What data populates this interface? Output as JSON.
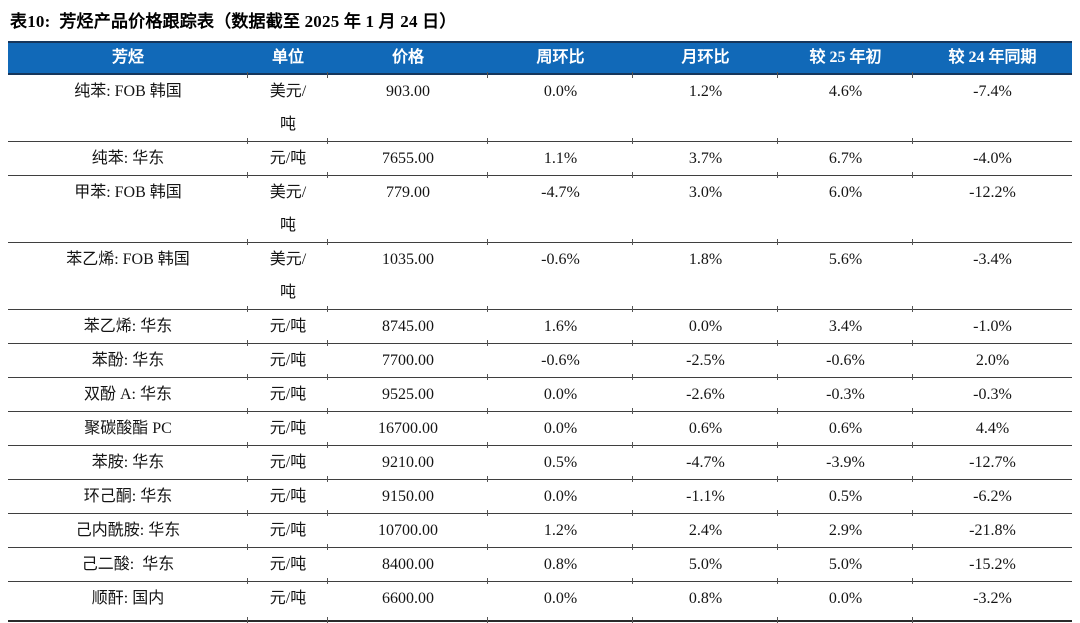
{
  "title": "表10:  芳烃产品价格跟踪表（数据截至 2025 年 1 月 24 日）",
  "colors": {
    "header_bg": "#1169B8",
    "header_text": "#FFFFFF",
    "header_rule": "#16365C",
    "row_rule": "#3F3F3F",
    "body_text": "#141414"
  },
  "table": {
    "columns": [
      {
        "label": "芳烃"
      },
      {
        "label": "单位"
      },
      {
        "label": "价格"
      },
      {
        "label": "周环比"
      },
      {
        "label": "月环比"
      },
      {
        "label": "较 25 年初"
      },
      {
        "label": "较 24 年同期"
      }
    ],
    "rows": [
      {
        "cells": [
          "纯苯: FOB 韩国",
          "美元/\n吨",
          "903.00",
          "0.0%",
          "1.2%",
          "4.6%",
          "-7.4%"
        ]
      },
      {
        "cells": [
          "纯苯: 华东",
          "元/吨",
          "7655.00",
          "1.1%",
          "3.7%",
          "6.7%",
          "-4.0%"
        ]
      },
      {
        "cells": [
          "甲苯: FOB 韩国",
          "美元/\n吨",
          "779.00",
          "-4.7%",
          "3.0%",
          "6.0%",
          "-12.2%"
        ]
      },
      {
        "cells": [
          "苯乙烯: FOB 韩国",
          "美元/\n吨",
          "1035.00",
          "-0.6%",
          "1.8%",
          "5.6%",
          "-3.4%"
        ]
      },
      {
        "cells": [
          "苯乙烯: 华东",
          "元/吨",
          "8745.00",
          "1.6%",
          "0.0%",
          "3.4%",
          "-1.0%"
        ]
      },
      {
        "cells": [
          "苯酚: 华东",
          "元/吨",
          "7700.00",
          "-0.6%",
          "-2.5%",
          "-0.6%",
          "2.0%"
        ]
      },
      {
        "cells": [
          "双酚 A: 华东",
          "元/吨",
          "9525.00",
          "0.0%",
          "-2.6%",
          "-0.3%",
          "-0.3%"
        ]
      },
      {
        "cells": [
          "聚碳酸酯 PC",
          "元/吨",
          "16700.00",
          "0.0%",
          "0.6%",
          "0.6%",
          "4.4%"
        ]
      },
      {
        "cells": [
          "苯胺: 华东",
          "元/吨",
          "9210.00",
          "0.5%",
          "-4.7%",
          "-3.9%",
          "-12.7%"
        ]
      },
      {
        "cells": [
          "环己酮: 华东",
          "元/吨",
          "9150.00",
          "0.0%",
          "-1.1%",
          "0.5%",
          "-6.2%"
        ]
      },
      {
        "cells": [
          "己内酰胺: 华东",
          "元/吨",
          "10700.00",
          "1.2%",
          "2.4%",
          "2.9%",
          "-21.8%"
        ]
      },
      {
        "cells": [
          "己二酸:  华东",
          "元/吨",
          "8400.00",
          "0.8%",
          "5.0%",
          "5.0%",
          "-15.2%"
        ]
      },
      {
        "cells": [
          "顺酐: 国内",
          "元/吨",
          "6600.00",
          "0.0%",
          "0.8%",
          "0.0%",
          "-3.2%"
        ]
      }
    ]
  },
  "chart_data": {
    "type": "table",
    "title": "表10: 芳烃产品价格跟踪表（数据截至 2025 年 1 月 24 日）",
    "columns": [
      "芳烃",
      "单位",
      "价格",
      "周环比",
      "月环比",
      "较 25 年初",
      "较 24 年同期"
    ],
    "rows": [
      [
        "纯苯: FOB 韩国",
        "美元/吨",
        903.0,
        "0.0%",
        "1.2%",
        "4.6%",
        "-7.4%"
      ],
      [
        "纯苯: 华东",
        "元/吨",
        7655.0,
        "1.1%",
        "3.7%",
        "6.7%",
        "-4.0%"
      ],
      [
        "甲苯: FOB 韩国",
        "美元/吨",
        779.0,
        "-4.7%",
        "3.0%",
        "6.0%",
        "-12.2%"
      ],
      [
        "苯乙烯: FOB 韩国",
        "美元/吨",
        1035.0,
        "-0.6%",
        "1.8%",
        "5.6%",
        "-3.4%"
      ],
      [
        "苯乙烯: 华东",
        "元/吨",
        8745.0,
        "1.6%",
        "0.0%",
        "3.4%",
        "-1.0%"
      ],
      [
        "苯酚: 华东",
        "元/吨",
        7700.0,
        "-0.6%",
        "-2.5%",
        "-0.6%",
        "2.0%"
      ],
      [
        "双酚 A: 华东",
        "元/吨",
        9525.0,
        "0.0%",
        "-2.6%",
        "-0.3%",
        "-0.3%"
      ],
      [
        "聚碳酸酯 PC",
        "元/吨",
        16700.0,
        "0.0%",
        "0.6%",
        "0.6%",
        "4.4%"
      ],
      [
        "苯胺: 华东",
        "元/吨",
        9210.0,
        "0.5%",
        "-4.7%",
        "-3.9%",
        "-12.7%"
      ],
      [
        "环己酮: 华东",
        "元/吨",
        9150.0,
        "0.0%",
        "-1.1%",
        "0.5%",
        "-6.2%"
      ],
      [
        "己内酰胺: 华东",
        "元/吨",
        10700.0,
        "1.2%",
        "2.4%",
        "2.9%",
        "-21.8%"
      ],
      [
        "己二酸: 华东",
        "元/吨",
        8400.0,
        "0.8%",
        "5.0%",
        "5.0%",
        "-15.2%"
      ],
      [
        "顺酐: 国内",
        "元/吨",
        6600.0,
        "0.0%",
        "0.8%",
        "0.0%",
        "-3.2%"
      ]
    ]
  }
}
